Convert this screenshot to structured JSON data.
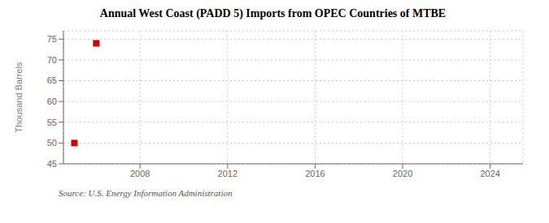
{
  "chart_data": {
    "type": "scatter",
    "title": "Annual West Coast (PADD 5) Imports from OPEC Countries of MTBE",
    "ylabel": "Thousand Barrels",
    "annotation": "Source: U.S. Energy Information Administration",
    "x": [
      2006,
      2005
    ],
    "values": [
      74,
      50
    ],
    "color": "#cc0000",
    "marker": "square",
    "xlim": [
      2004.5,
      2025.5
    ],
    "ylim": [
      45,
      77
    ],
    "xticks": [
      2008,
      2012,
      2016,
      2020,
      2024
    ],
    "yticks": [
      45,
      50,
      55,
      60,
      65,
      70,
      75
    ],
    "grid": true
  }
}
